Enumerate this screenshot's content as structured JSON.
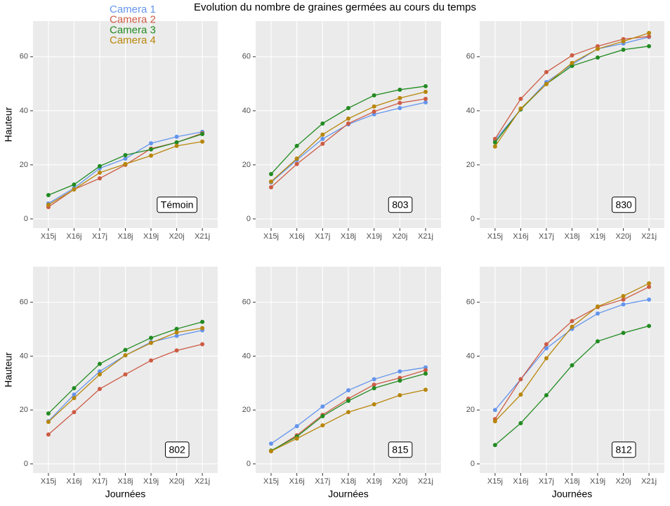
{
  "chart_data": [
    {
      "type": "line",
      "title": "Evolution du nombre de graines germées au cours du temps",
      "ylabel": "Hauteur",
      "annotation": "Témoin",
      "grid": true,
      "categories": [
        "X15j",
        "X16j",
        "X17j",
        "X18j",
        "X19j",
        "X20j",
        "X21j"
      ],
      "ylim": [
        -3.4,
        73.2
      ],
      "yticks": [
        0,
        20,
        40,
        60
      ],
      "series": [
        {
          "name": "Camera 1",
          "color": "#6495ed",
          "values": [
            5.7,
            11.4,
            18.7,
            22.3,
            28,
            30.4,
            32.2
          ]
        },
        {
          "name": "Camera 2",
          "color": "#cd5c45",
          "values": [
            4.4,
            10.9,
            15,
            20,
            26,
            28.3,
            31.7
          ]
        },
        {
          "name": "Camera 3",
          "color": "#228b22",
          "values": [
            8.8,
            12.7,
            19.5,
            23.6,
            25.7,
            28.3,
            31.4
          ]
        },
        {
          "name": "Camera 4",
          "color": "#b8860b",
          "values": [
            5.2,
            10.9,
            17.1,
            20.3,
            23.4,
            27,
            28.6
          ]
        }
      ]
    },
    {
      "type": "line",
      "annotation": "803",
      "grid": true,
      "categories": [
        "X15j",
        "X16j",
        "X17j",
        "X18j",
        "X19j",
        "X20j",
        "X21j"
      ],
      "ylim": [
        -3.4,
        73.2
      ],
      "yticks": [
        0,
        20,
        40,
        60
      ],
      "series": [
        {
          "color": "#6495ed",
          "values": [
            13.5,
            21.8,
            29.6,
            35,
            38.7,
            41,
            43.1
          ]
        },
        {
          "color": "#cd5c45",
          "values": [
            11.7,
            20.3,
            27.8,
            35.3,
            39.7,
            42.9,
            44.4
          ]
        },
        {
          "color": "#228b22",
          "values": [
            16.6,
            27,
            35.3,
            41,
            45.7,
            47.8,
            49.1
          ]
        },
        {
          "color": "#b8860b",
          "values": [
            13.8,
            22.3,
            31.2,
            37.1,
            41.6,
            44.7,
            47
          ]
        }
      ]
    },
    {
      "type": "line",
      "annotation": "830",
      "grid": true,
      "categories": [
        "X15j",
        "X16j",
        "X17j",
        "X18j",
        "X19j",
        "X20j",
        "X21j"
      ],
      "ylim": [
        -3.4,
        73.2
      ],
      "yticks": [
        0,
        20,
        40,
        60
      ],
      "series": [
        {
          "color": "#6495ed",
          "values": [
            29.1,
            40.5,
            50.6,
            57.1,
            62.9,
            64.9,
            67.3
          ]
        },
        {
          "color": "#cd5c45",
          "values": [
            29.6,
            44.4,
            54.3,
            60.5,
            63.9,
            66.5,
            67.5
          ]
        },
        {
          "color": "#228b22",
          "values": [
            28.3,
            40.5,
            49.9,
            56.6,
            59.7,
            62.6,
            63.9
          ]
        },
        {
          "color": "#b8860b",
          "values": [
            26.8,
            40.8,
            49.9,
            57.7,
            62.9,
            65.7,
            68.8
          ]
        }
      ]
    },
    {
      "type": "line",
      "ylabel": "Hauteur",
      "xlabel": "Journées",
      "annotation": "802",
      "grid": true,
      "categories": [
        "X15j",
        "X16j",
        "X17j",
        "X18j",
        "X19j",
        "X20j",
        "X21j"
      ],
      "ylim": [
        -3.4,
        73.2
      ],
      "yticks": [
        0,
        20,
        40,
        60
      ],
      "series": [
        {
          "color": "#6495ed",
          "values": [
            15.8,
            25.7,
            34.3,
            40.3,
            45.2,
            47.5,
            49.6
          ]
        },
        {
          "color": "#cd5c45",
          "values": [
            10.9,
            19.2,
            27.8,
            33.2,
            38.4,
            42.1,
            44.4
          ]
        },
        {
          "color": "#228b22",
          "values": [
            18.7,
            28.1,
            37.1,
            42.3,
            46.8,
            50.1,
            52.7
          ]
        },
        {
          "color": "#b8860b",
          "values": [
            15.6,
            24.4,
            33.2,
            40.3,
            44.9,
            48.8,
            50.4
          ]
        }
      ]
    },
    {
      "type": "line",
      "xlabel": "Journées",
      "annotation": "815",
      "grid": true,
      "categories": [
        "X15j",
        "X16j",
        "X17j",
        "X18j",
        "X19j",
        "X20j",
        "X21j"
      ],
      "ylim": [
        -3.4,
        73.2
      ],
      "yticks": [
        0,
        20,
        40,
        60
      ],
      "series": [
        {
          "color": "#6495ed",
          "values": [
            7.5,
            14,
            21.3,
            27.3,
            31.4,
            34.3,
            35.8
          ]
        },
        {
          "color": "#cd5c45",
          "values": [
            4.7,
            10.6,
            18.2,
            24.2,
            29.4,
            31.9,
            34.8
          ]
        },
        {
          "color": "#228b22",
          "values": [
            4.9,
            10.1,
            17.7,
            23.4,
            28.1,
            30.9,
            33.5
          ]
        },
        {
          "color": "#b8860b",
          "values": [
            4.7,
            9.4,
            14.3,
            19.2,
            22.1,
            25.5,
            27.5
          ]
        }
      ]
    },
    {
      "type": "line",
      "xlabel": "Journées",
      "annotation": "812",
      "grid": true,
      "categories": [
        "X15j",
        "X16j",
        "X17j",
        "X18j",
        "X19j",
        "X20j",
        "X21j"
      ],
      "ylim": [
        -3.4,
        73.2
      ],
      "yticks": [
        0,
        20,
        40,
        60
      ],
      "series": [
        {
          "color": "#6495ed",
          "values": [
            20,
            31.4,
            42.9,
            50.1,
            55.8,
            59.2,
            61
          ]
        },
        {
          "color": "#cd5c45",
          "values": [
            16.6,
            31.4,
            44.4,
            53,
            58.2,
            61,
            65.7
          ]
        },
        {
          "color": "#228b22",
          "values": [
            7,
            15.1,
            25.5,
            36.6,
            45.5,
            48.6,
            51.2
          ]
        },
        {
          "color": "#b8860b",
          "values": [
            15.8,
            25.7,
            39.2,
            50.9,
            58.4,
            62.3,
            67
          ]
        }
      ]
    }
  ]
}
